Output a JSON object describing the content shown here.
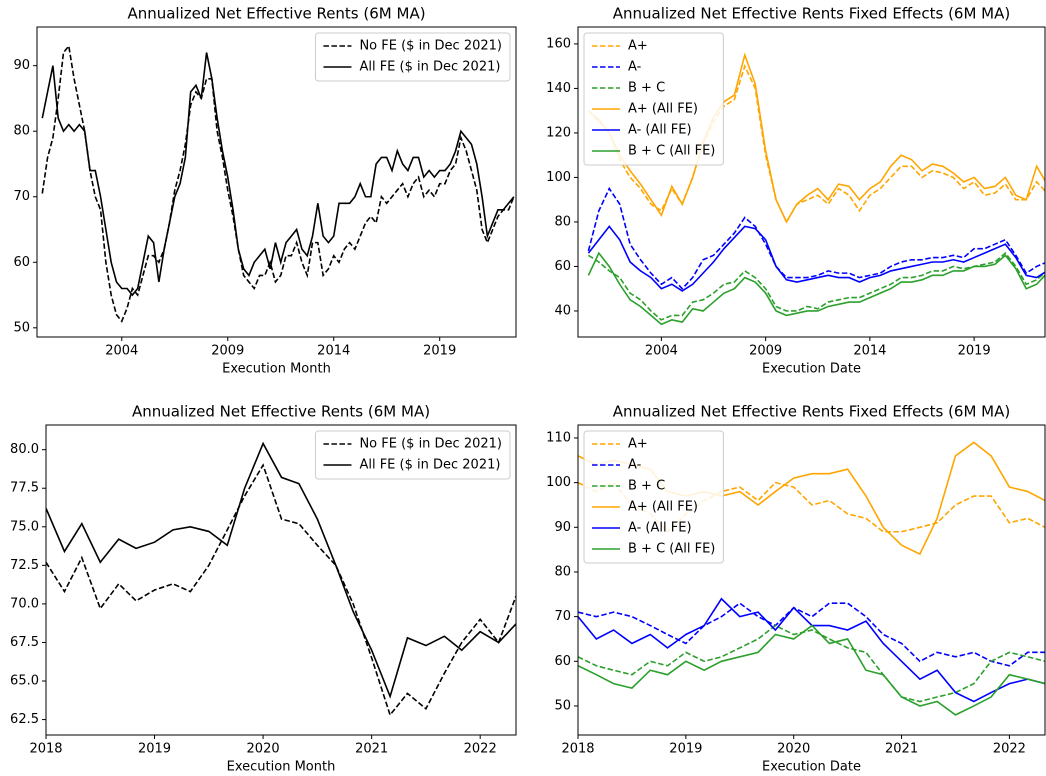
{
  "chart_data": [
    {
      "type": "line",
      "title": "Annualized Net Effective Rents (6M MA)",
      "x_label": "Execution Month",
      "legend": "upper right",
      "x": [
        2000.25,
        2000.5,
        2000.75,
        2001,
        2001.25,
        2001.5,
        2001.75,
        2002,
        2002.25,
        2002.5,
        2002.75,
        2003,
        2003.25,
        2003.5,
        2003.75,
        2004,
        2004.25,
        2004.5,
        2004.75,
        2005,
        2005.25,
        2005.5,
        2005.75,
        2006,
        2006.25,
        2006.5,
        2006.75,
        2007,
        2007.25,
        2007.5,
        2007.75,
        2008,
        2008.25,
        2008.5,
        2008.75,
        2009,
        2009.25,
        2009.5,
        2009.75,
        2010,
        2010.25,
        2010.5,
        2010.75,
        2011,
        2011.25,
        2011.5,
        2011.75,
        2012,
        2012.25,
        2012.5,
        2012.75,
        2013,
        2013.25,
        2013.5,
        2013.75,
        2014,
        2014.25,
        2014.5,
        2014.75,
        2015,
        2015.25,
        2015.5,
        2015.75,
        2016,
        2016.25,
        2016.5,
        2016.75,
        2017,
        2017.25,
        2017.5,
        2017.75,
        2018,
        2018.25,
        2018.5,
        2018.75,
        2019,
        2019.25,
        2019.5,
        2019.75,
        2020,
        2020.25,
        2020.5,
        2020.75,
        2021,
        2021.25,
        2021.5,
        2021.75,
        2022,
        2022.25,
        2022.5
      ],
      "series": [
        {
          "name": "No FE ($ in Dec 2021)",
          "color": "#000000",
          "linestyle": "dashed",
          "values": [
            70.5,
            76,
            79,
            85,
            92,
            93,
            88,
            84,
            80,
            74,
            70,
            68,
            60,
            55,
            52,
            51,
            53,
            56,
            55,
            58,
            61,
            61,
            60,
            62,
            66,
            71,
            74,
            78,
            84,
            86,
            85,
            88,
            88,
            80,
            76,
            71,
            67,
            62,
            58,
            57,
            56,
            58,
            58,
            60,
            57,
            58,
            61,
            61,
            63,
            60,
            58,
            63,
            63,
            58,
            59,
            61,
            60,
            62,
            63,
            62,
            64,
            66,
            67,
            66,
            70,
            69,
            70,
            71,
            72,
            70,
            72,
            73,
            70,
            71,
            70,
            72,
            72,
            74,
            75,
            79,
            77,
            74,
            71,
            65,
            63,
            65,
            67,
            68,
            68,
            70
          ]
        },
        {
          "name": "All FE ($ in Dec 2021)",
          "color": "#000000",
          "linestyle": "solid",
          "values": [
            82,
            86,
            90,
            82,
            80,
            81,
            80,
            81,
            80,
            74,
            74,
            70,
            65,
            60,
            57,
            56,
            56,
            55,
            56,
            60,
            64,
            63,
            57,
            62,
            66,
            70,
            72,
            76,
            86,
            87,
            85,
            92,
            88,
            82,
            77,
            73,
            68,
            62,
            59,
            58,
            60,
            61,
            62,
            59,
            63,
            60,
            63,
            64,
            65,
            62,
            61,
            64,
            69,
            64,
            63,
            64,
            69,
            69,
            69,
            70,
            72,
            70,
            70,
            75,
            76,
            76,
            74,
            77,
            75,
            74,
            76,
            76,
            73,
            74,
            73,
            74,
            74,
            75,
            77,
            80,
            79,
            78,
            75,
            70,
            64,
            66,
            68,
            68,
            69,
            70
          ]
        }
      ],
      "xlim": [
        2000,
        2022.6
      ],
      "ylim": [
        48.6,
        95.9
      ],
      "xticks": [
        2004,
        2009,
        2014,
        2019
      ],
      "yticks": [
        50,
        60,
        70,
        80,
        90
      ]
    },
    {
      "type": "line",
      "title": "Annualized Net Effective Rents Fixed Effects (6M MA)",
      "x_label": "Execution Date",
      "legend": "upper left",
      "x": [
        2000.5,
        2001,
        2001.5,
        2002,
        2002.5,
        2003,
        2003.5,
        2004,
        2004.5,
        2005,
        2005.5,
        2006,
        2006.5,
        2007,
        2007.5,
        2008,
        2008.5,
        2009,
        2009.5,
        2010,
        2010.5,
        2011,
        2011.5,
        2012,
        2012.5,
        2013,
        2013.5,
        2014,
        2014.5,
        2015,
        2015.5,
        2016,
        2016.5,
        2017,
        2017.5,
        2018,
        2018.5,
        2019,
        2019.5,
        2020,
        2020.5,
        2021,
        2021.5,
        2022,
        2022.5
      ],
      "series": [
        {
          "name": "A+",
          "color": "#ffa500",
          "linestyle": "dashed",
          "values": [
            130,
            125,
            120,
            108,
            100,
            95,
            88,
            85,
            95,
            88,
            100,
            115,
            125,
            132,
            135,
            150,
            140,
            110,
            90,
            80,
            88,
            90,
            92,
            88,
            95,
            92,
            85,
            92,
            95,
            100,
            105,
            105,
            100,
            103,
            102,
            100,
            95,
            98,
            92,
            93,
            97,
            90,
            90,
            98,
            93
          ]
        },
        {
          "name": "A-",
          "color": "#0000ff",
          "linestyle": "dashed",
          "values": [
            67,
            85,
            95,
            88,
            70,
            63,
            57,
            52,
            55,
            50,
            55,
            63,
            65,
            70,
            75,
            82,
            78,
            70,
            60,
            55,
            55,
            55,
            56,
            58,
            57,
            57,
            55,
            56,
            57,
            60,
            62,
            63,
            63,
            64,
            64,
            65,
            64,
            68,
            68,
            70,
            72,
            65,
            57,
            60,
            62
          ]
        },
        {
          "name": "B + C",
          "color": "#2ca02c",
          "linestyle": "dashed",
          "values": [
            65,
            62,
            58,
            55,
            48,
            45,
            40,
            36,
            38,
            38,
            44,
            45,
            48,
            52,
            53,
            58,
            55,
            50,
            42,
            40,
            40,
            42,
            41,
            44,
            45,
            46,
            46,
            48,
            50,
            52,
            55,
            55,
            56,
            58,
            58,
            60,
            59,
            60,
            61,
            62,
            66,
            60,
            52,
            54,
            58
          ]
        },
        {
          "name": "A+ (All FE)",
          "color": "#ffa500",
          "linestyle": "solid",
          "values": [
            130,
            126,
            120,
            110,
            103,
            97,
            90,
            83,
            96,
            88,
            100,
            116,
            127,
            134,
            137,
            155,
            142,
            112,
            90,
            80,
            88,
            92,
            95,
            90,
            97,
            96,
            90,
            95,
            98,
            105,
            110,
            108,
            103,
            106,
            105,
            102,
            98,
            100,
            95,
            96,
            100,
            92,
            90,
            105,
            97
          ]
        },
        {
          "name": "A- (All FE)",
          "color": "#0000ff",
          "linestyle": "solid",
          "values": [
            66,
            72,
            78,
            72,
            62,
            58,
            55,
            50,
            52,
            49,
            52,
            57,
            62,
            68,
            73,
            78,
            77,
            72,
            60,
            54,
            53,
            54,
            55,
            56,
            55,
            55,
            53,
            55,
            56,
            58,
            59,
            60,
            61,
            62,
            62,
            63,
            62,
            64,
            66,
            68,
            70,
            64,
            56,
            55,
            58
          ]
        },
        {
          "name": "B + C (All FE)",
          "color": "#2ca02c",
          "linestyle": "solid",
          "values": [
            56,
            66,
            60,
            52,
            45,
            42,
            38,
            34,
            36,
            35,
            41,
            40,
            44,
            48,
            50,
            55,
            53,
            48,
            40,
            38,
            39,
            40,
            40,
            42,
            43,
            44,
            44,
            46,
            48,
            50,
            53,
            53,
            54,
            56,
            56,
            58,
            58,
            60,
            60,
            61,
            65,
            59,
            50,
            52,
            57
          ]
        }
      ],
      "xlim": [
        2000,
        2022.4
      ],
      "ylim": [
        28.3,
        167.6
      ],
      "xticks": [
        2004,
        2009,
        2014,
        2019
      ],
      "yticks": [
        40,
        60,
        80,
        100,
        120,
        140,
        160
      ]
    },
    {
      "type": "line",
      "title": "Annualized Net Effective Rents (6M MA)",
      "x_label": "Execution Month",
      "legend": "upper right",
      "x": [
        2018,
        2018.17,
        2018.33,
        2018.5,
        2018.67,
        2018.83,
        2019,
        2019.17,
        2019.33,
        2019.5,
        2019.67,
        2019.83,
        2020,
        2020.17,
        2020.33,
        2020.5,
        2020.67,
        2020.83,
        2021,
        2021.17,
        2021.33,
        2021.5,
        2021.67,
        2021.83,
        2022,
        2022.17,
        2022.33
      ],
      "series": [
        {
          "name": "No FE ($ in Dec 2021)",
          "color": "#000000",
          "linestyle": "dashed",
          "values": [
            72.7,
            70.8,
            73.0,
            69.7,
            71.3,
            70.2,
            70.9,
            71.3,
            70.8,
            72.5,
            74.8,
            77.0,
            79.0,
            75.5,
            75.2,
            73.8,
            72.5,
            70.0,
            66.5,
            62.8,
            64.2,
            63.2,
            65.5,
            67.5,
            69.0,
            67.5,
            70.5
          ]
        },
        {
          "name": "All FE ($ in Dec 2021)",
          "color": "#000000",
          "linestyle": "solid",
          "values": [
            76.2,
            73.4,
            75.2,
            72.7,
            74.2,
            73.6,
            74.0,
            74.8,
            75.0,
            74.7,
            73.8,
            77.5,
            80.4,
            78.2,
            77.8,
            75.5,
            72.5,
            69.5,
            67.0,
            64.0,
            67.8,
            67.3,
            67.9,
            67.0,
            68.2,
            67.5,
            68.7
          ]
        }
      ],
      "xlim": [
        2018,
        2022.33
      ],
      "ylim": [
        61.5,
        81.6
      ],
      "xticks": [
        2018,
        2019,
        2020,
        2021,
        2022
      ],
      "yticks": [
        {
          "value": 62.5,
          "label": "62.5"
        },
        {
          "value": 65,
          "label": "65.0"
        },
        {
          "value": 67.5,
          "label": "67.5"
        },
        {
          "value": 70,
          "label": "70.0"
        },
        {
          "value": 72.5,
          "label": "72.5"
        },
        {
          "value": 75,
          "label": "75.0"
        },
        {
          "value": 77.5,
          "label": "77.5"
        },
        {
          "value": 80,
          "label": "80.0"
        }
      ]
    },
    {
      "type": "line",
      "title": "Annualized Net Effective Rents Fixed Effects (6M MA)",
      "x_label": "Execution Date",
      "legend": "upper left",
      "x": [
        2018,
        2018.17,
        2018.33,
        2018.5,
        2018.67,
        2018.83,
        2019,
        2019.17,
        2019.33,
        2019.5,
        2019.67,
        2019.83,
        2020,
        2020.17,
        2020.33,
        2020.5,
        2020.67,
        2020.83,
        2021,
        2021.17,
        2021.33,
        2021.5,
        2021.67,
        2021.83,
        2022,
        2022.17,
        2022.33
      ],
      "series": [
        {
          "name": "A+",
          "color": "#ffa500",
          "linestyle": "dashed",
          "values": [
            100,
            98,
            100,
            95,
            93,
            89,
            93,
            96,
            98,
            99,
            96,
            100,
            99,
            95,
            96,
            93,
            92,
            89,
            89,
            90,
            91,
            95,
            97,
            97,
            91,
            92,
            90
          ]
        },
        {
          "name": "A-",
          "color": "#0000ff",
          "linestyle": "dashed",
          "values": [
            71,
            70,
            71,
            70,
            68,
            66,
            64,
            68,
            70,
            73,
            70,
            68,
            72,
            70,
            73,
            73,
            70,
            66,
            64,
            60,
            62,
            61,
            62,
            60,
            59,
            62,
            62
          ]
        },
        {
          "name": "B + C",
          "color": "#2ca02c",
          "linestyle": "dashed",
          "values": [
            61,
            59,
            58,
            57,
            60,
            59,
            62,
            60,
            61,
            63,
            65,
            68,
            66,
            67,
            65,
            63,
            62,
            57,
            52,
            51,
            52,
            53,
            55,
            60,
            62,
            61,
            60
          ]
        },
        {
          "name": "A+ (All FE)",
          "color": "#ffa500",
          "linestyle": "solid",
          "values": [
            106,
            104,
            105,
            104,
            103,
            98,
            97,
            98,
            97,
            98,
            95,
            98,
            101,
            102,
            102,
            103,
            97,
            90,
            86,
            84,
            92,
            106,
            109,
            106,
            99,
            98,
            96
          ]
        },
        {
          "name": "A- (All FE)",
          "color": "#0000ff",
          "linestyle": "solid",
          "values": [
            70,
            65,
            67,
            64,
            66,
            63,
            66,
            68,
            74,
            70,
            71,
            67,
            72,
            68,
            68,
            67,
            69,
            64,
            60,
            56,
            58,
            53,
            51,
            53,
            55,
            56,
            55
          ]
        },
        {
          "name": "B + C (All FE)",
          "color": "#2ca02c",
          "linestyle": "solid",
          "values": [
            59,
            57,
            55,
            54,
            58,
            57,
            60,
            58,
            60,
            61,
            62,
            66,
            65,
            68,
            64,
            65,
            58,
            57,
            52,
            50,
            51,
            48,
            50,
            52,
            57,
            56,
            55
          ]
        }
      ],
      "xlim": [
        2018,
        2022.33
      ],
      "ylim": [
        43.5,
        112.9
      ],
      "xticks": [
        2018,
        2019,
        2020,
        2021,
        2022
      ],
      "yticks": [
        50,
        60,
        70,
        80,
        90,
        100,
        110
      ]
    }
  ]
}
